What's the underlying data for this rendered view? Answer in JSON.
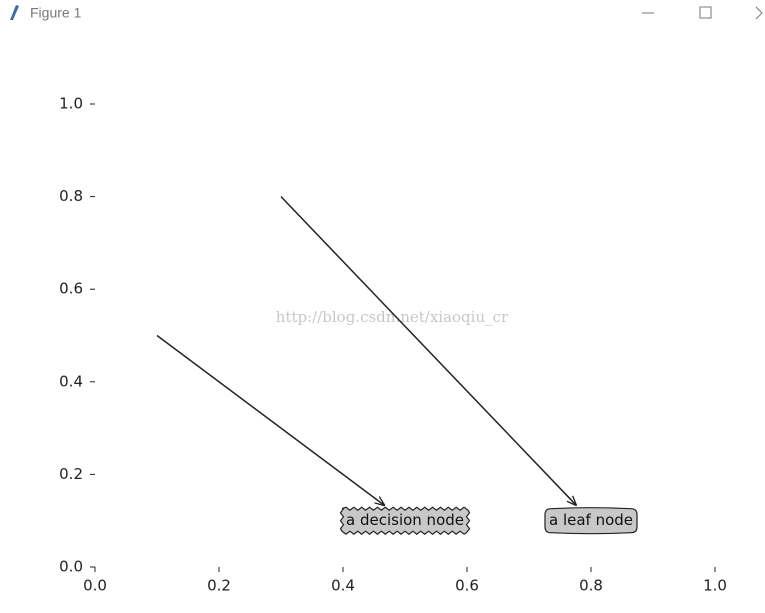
{
  "window": {
    "title": "Figure 1"
  },
  "chart_data": {
    "type": "annotate",
    "xlim": [
      0,
      1
    ],
    "ylim": [
      0,
      1
    ],
    "xticks": [
      {
        "value": 0,
        "label": "0.0"
      },
      0.2,
      0.4,
      0.6,
      0.8,
      {
        "value": 1,
        "label": "1.0"
      }
    ],
    "yticks": [
      {
        "value": 0,
        "label": "0.0"
      },
      0.2,
      0.4,
      0.6,
      0.8,
      {
        "value": 1,
        "label": "1.0"
      }
    ],
    "box_color": "#c8c8c8",
    "annotations": [
      {
        "text": "a decision node",
        "xy": [
          0.1,
          0.5
        ],
        "xytext": [
          0.5,
          0.1
        ],
        "boxstyle": "sawtooth"
      },
      {
        "text": "a leaf node",
        "xy": [
          0.3,
          0.8
        ],
        "xytext": [
          0.8,
          0.1
        ],
        "boxstyle": "round4"
      }
    ],
    "watermark": "http://blog.csdn.net/xiaoqiu_cr"
  }
}
